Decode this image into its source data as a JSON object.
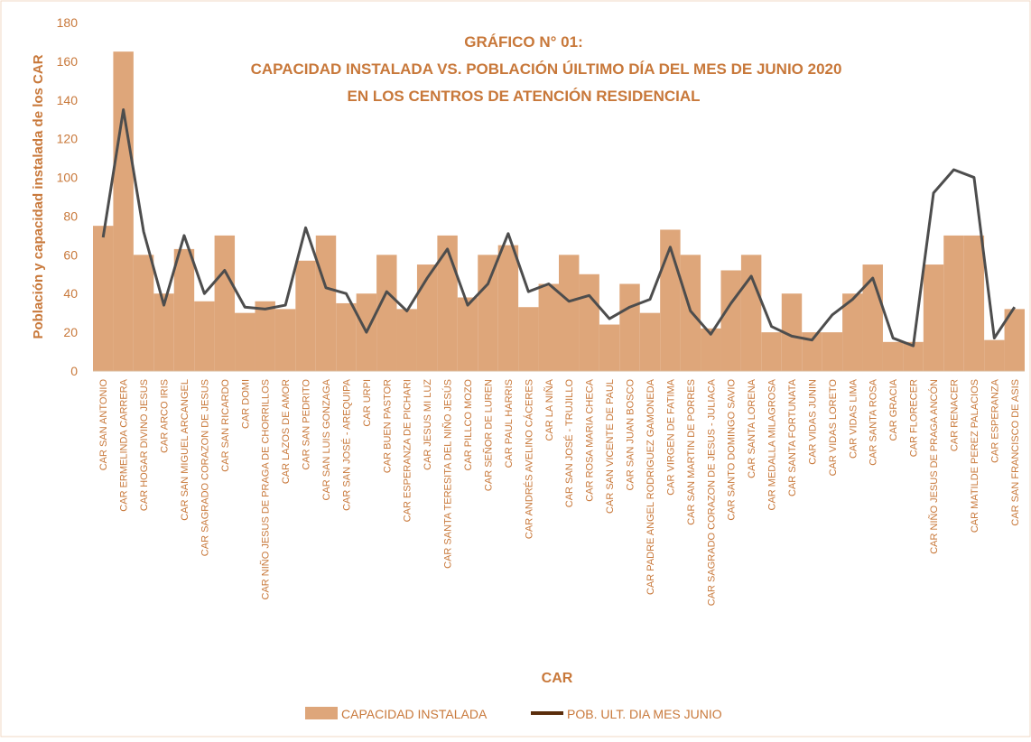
{
  "chart_data": {
    "type": "bar_line",
    "title_lines": [
      "GRÁFICO N° 01:",
      "CAPACIDAD INSTALADA VS. POBLACIÓN  ÚILTIMO DÍA DEL MES  DE JUNIO 2020",
      "EN LOS CENTROS DE ATENCIÓN RESIDENCIAL"
    ],
    "x_label": "CAR",
    "y_label": "Población y capacidad instalada de los CAR",
    "categories": [
      "CAR SAN ANTONIO",
      "CAR ERMELINDA CARRERA",
      "CAR HOGAR DIVINO JESUS",
      "CAR ARCO IRIS",
      "CAR SAN MIGUEL ARCANGEL",
      "CAR SAGRADO CORAZON DE JESUS",
      "CAR SAN RICARDO",
      "CAR DOMI",
      "CAR NIÑO JESUS DE PRAGA DE CHORRILLOS",
      "CAR LAZOS DE AMOR",
      "CAR SAN PEDRITO",
      "CAR SAN LUIS GONZAGA",
      "CAR SAN JOSÉ - AREQUIPA",
      "CAR URPI",
      "CAR BUEN PASTOR",
      "CAR ESPERANZA DE PICHARI",
      "CAR JESUS MI LUZ",
      "CAR SANTA TERESITA DEL NIÑO JESÚS",
      "CAR PILLCO MOZO",
      "CAR SEÑOR DE LUREN",
      "CAR PAUL HARRIS",
      "CAR ANDRÉS AVELINO CÁCERES",
      "CAR LA NIÑA",
      "CAR SAN JOSÉ - TRUJILLO",
      "CAR ROSA MARIA CHECA",
      "CAR SAN VICENTE DE PAUL",
      "CAR SAN JUAN BOSCO",
      "CAR PADRE ANGEL RODRIGUEZ GAMONEDA",
      "CAR VIRGEN DE FATIMA",
      "CAR SAN MARTIN DE PORRES",
      "CAR SAGRADO CORAZON DE JESUS - JULIACA",
      "CAR SANTO DOMINGO SAVIO",
      "CAR SANTA LORENA",
      "CAR MEDALLA MILAGROSA",
      "CAR SANTA FORTUNATA",
      "CAR VIDAS JUNIN",
      "CAR VIDAS LORETO",
      "CAR VIDAS LIMA",
      "CAR SANTA ROSA",
      "CAR GRACIA",
      "CAR FLORECER",
      "CAR NIÑO JESUS DE PRAGA ANCÓN",
      "CAR RENACER",
      "CAR MATILDE PEREZ PALACIOS",
      "CAR ESPERANZA",
      "CAR SAN FRANCISCO DE ASIS"
    ],
    "series": [
      {
        "name": "CAPACIDAD INSTALADA",
        "kind": "bar",
        "color": "#dea67a",
        "values": [
          75,
          165,
          60,
          40,
          63,
          36,
          70,
          30,
          36,
          32,
          57,
          70,
          35,
          40,
          60,
          32,
          55,
          70,
          38,
          60,
          65,
          33,
          45,
          60,
          50,
          24,
          45,
          30,
          73,
          60,
          22,
          52,
          60,
          20,
          40,
          20,
          20,
          40,
          55,
          15,
          15,
          55,
          70,
          70,
          16,
          32
        ]
      },
      {
        "name": "POB. ULT. DIA MES JUNIO",
        "kind": "line",
        "color": "#4d4d4d",
        "legend_color": "#5a2d0c",
        "values": [
          69,
          135,
          72,
          34,
          70,
          40,
          52,
          33,
          32,
          34,
          74,
          43,
          40,
          20,
          41,
          31,
          48,
          63,
          34,
          45,
          71,
          41,
          45,
          36,
          39,
          27,
          33,
          37,
          64,
          31,
          19,
          35,
          49,
          23,
          18,
          16,
          29,
          37,
          48,
          17,
          13,
          92,
          104,
          100,
          17,
          33
        ]
      }
    ],
    "ylim": [
      0,
      180
    ],
    "yticks": [
      0,
      20,
      40,
      60,
      80,
      100,
      120,
      140,
      160,
      180
    ]
  }
}
